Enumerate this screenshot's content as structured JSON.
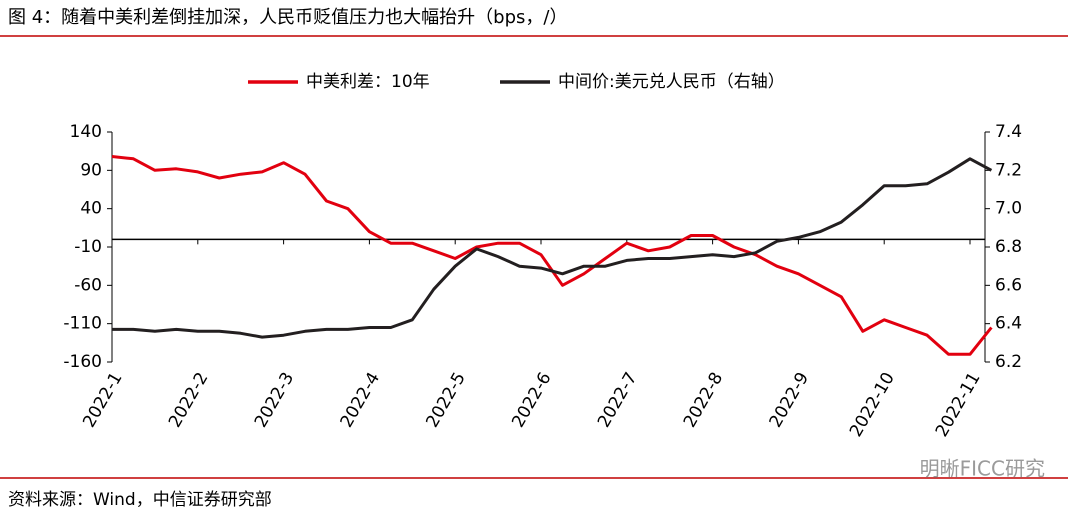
{
  "chart_data": {
    "type": "line",
    "title": "图 4：随着中美利差倒挂加深，人民币贬值压力也大幅抬升（bps，/）",
    "source": "资料来源：Wind，中信证券研究部",
    "watermark": "明晰FICC研究",
    "legend": "top",
    "categories": [
      "2022-1",
      null,
      null,
      null,
      "2022-2",
      null,
      null,
      null,
      "2022-3",
      null,
      null,
      null,
      "2022-4",
      null,
      null,
      null,
      "2022-5",
      null,
      null,
      null,
      "2022-6",
      null,
      null,
      null,
      "2022-7",
      null,
      null,
      null,
      "2022-8",
      null,
      null,
      null,
      "2022-9",
      null,
      null,
      null,
      "2022-10",
      null,
      null,
      null,
      "2022-11",
      null
    ],
    "series": [
      {
        "name": "中美利差：10年",
        "color": "#e2000f",
        "values": [
          108,
          105,
          90,
          92,
          88,
          80,
          85,
          88,
          100,
          85,
          50,
          40,
          10,
          -5,
          -5,
          -15,
          -25,
          -10,
          -5,
          -5,
          -20,
          -60,
          -45,
          -25,
          -5,
          -15,
          -10,
          5,
          5,
          -10,
          -20,
          -35,
          -45,
          -60,
          -75,
          -120,
          -105,
          -115,
          -125,
          -150,
          -150,
          -115
        ]
      },
      {
        "name": "中间价:美元兑人民币（右轴）",
        "color": "#231f20",
        "axis": "y2",
        "values": [
          6.37,
          6.37,
          6.36,
          6.37,
          6.36,
          6.36,
          6.35,
          6.33,
          6.34,
          6.36,
          6.37,
          6.37,
          6.38,
          6.38,
          6.42,
          6.58,
          6.7,
          6.79,
          6.75,
          6.7,
          6.69,
          6.66,
          6.7,
          6.7,
          6.73,
          6.74,
          6.74,
          6.75,
          6.76,
          6.75,
          6.77,
          6.83,
          6.85,
          6.88,
          6.93,
          7.02,
          7.12,
          7.12,
          7.13,
          7.19,
          7.26,
          7.2
        ]
      }
    ],
    "ylim": [
      -160,
      140
    ],
    "yticks": [
      140,
      90,
      40,
      -10,
      -60,
      -110,
      -160
    ],
    "y2lim": [
      6.2,
      7.4
    ],
    "y2ticks": [
      7.4,
      7.2,
      {
        "value": 7.0,
        "label": "7.0"
      },
      6.8,
      6.6,
      6.4,
      6.2
    ],
    "grid": false
  }
}
